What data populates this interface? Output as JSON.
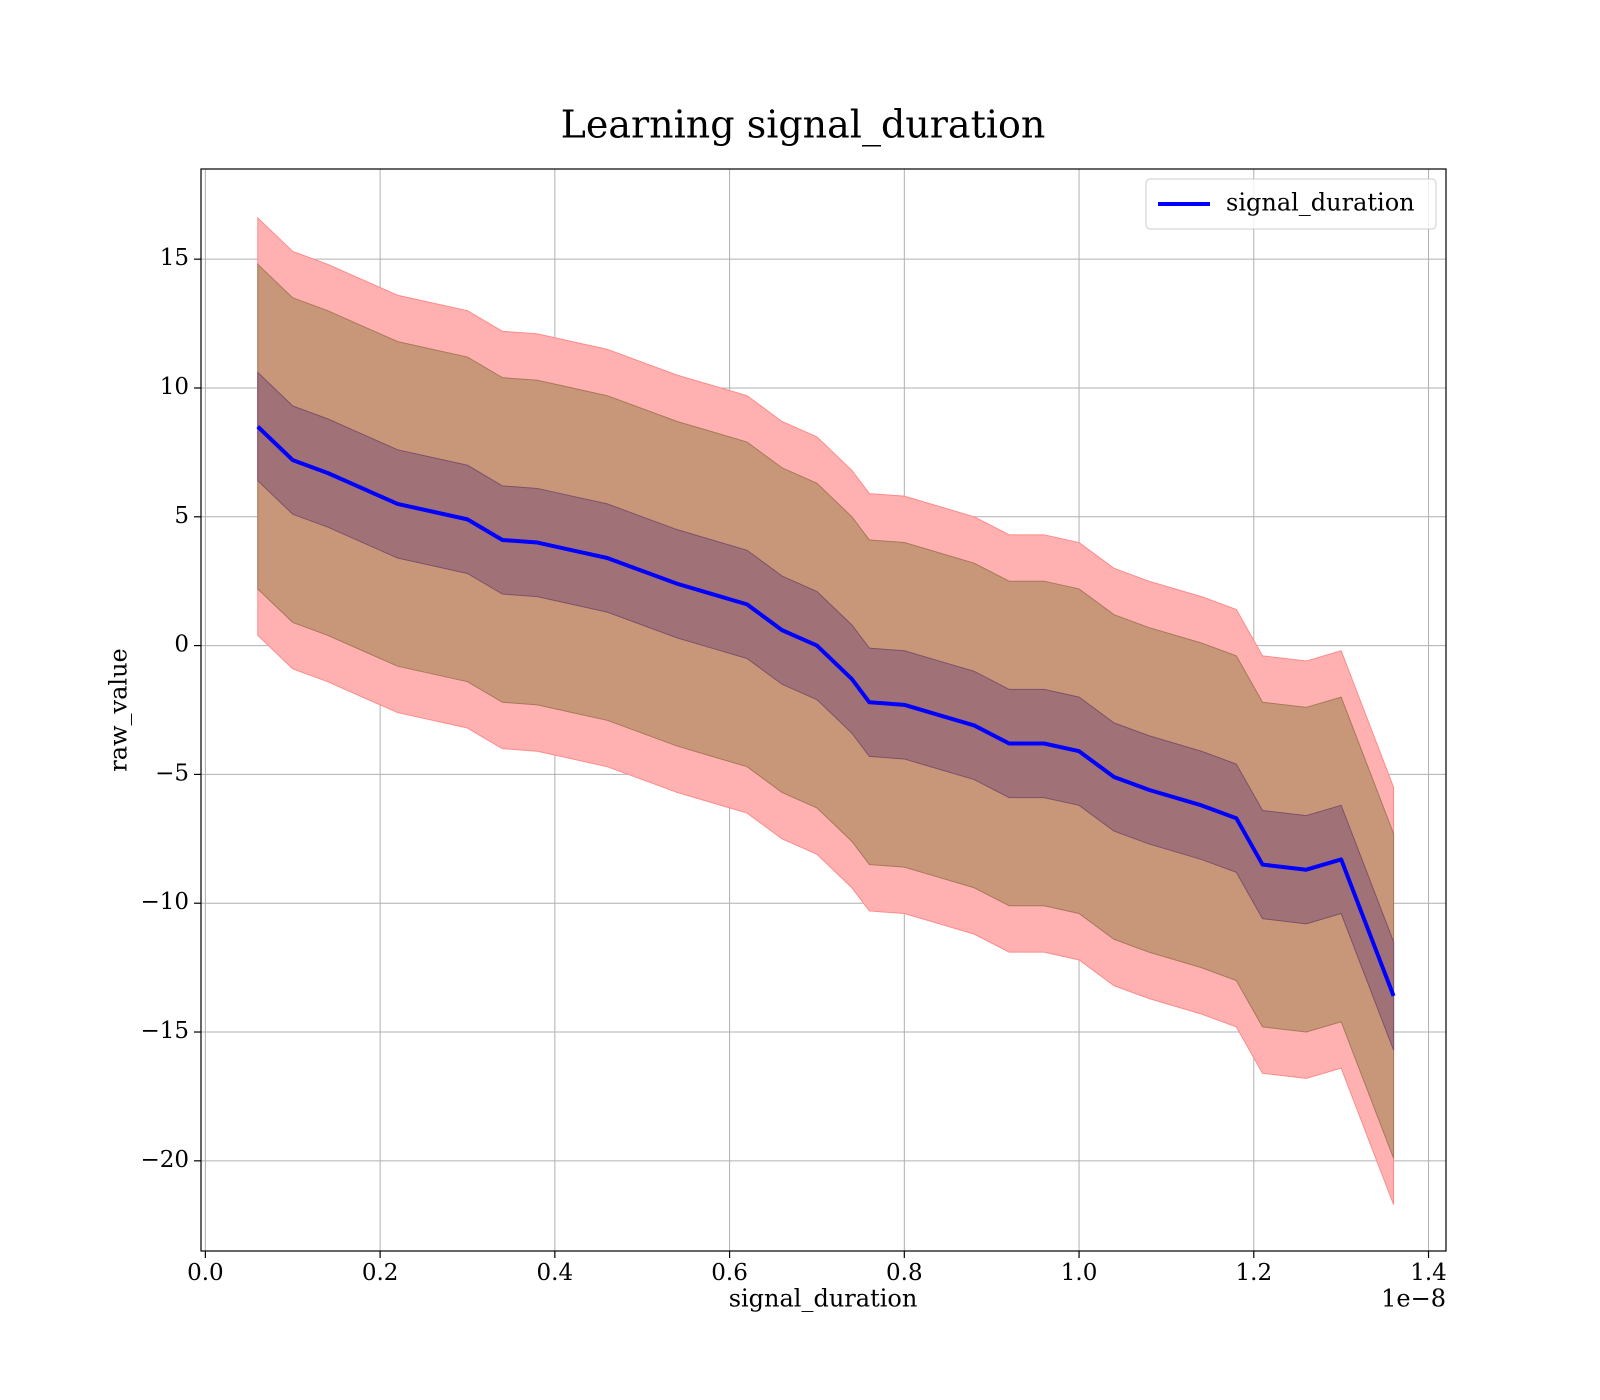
{
  "chart_data": {
    "type": "line",
    "title": "Learning signal_duration",
    "x_label": "signal_duration",
    "y_label": "raw_value",
    "x_offset_label": "1e−8",
    "x": [
      0.06,
      0.1,
      0.14,
      0.18,
      0.22,
      0.26,
      0.3,
      0.34,
      0.38,
      0.42,
      0.46,
      0.5,
      0.54,
      0.58,
      0.62,
      0.66,
      0.7,
      0.74,
      0.76,
      0.8,
      0.84,
      0.88,
      0.92,
      0.96,
      1.0,
      1.04,
      1.08,
      1.14,
      1.18,
      1.21,
      1.26,
      1.3,
      1.36
    ],
    "series": [
      {
        "name": "signal_duration",
        "color": "#0000ff",
        "values": [
          8.5,
          7.2,
          6.7,
          6.1,
          5.5,
          5.2,
          4.9,
          4.1,
          4.0,
          3.7,
          3.4,
          2.9,
          2.4,
          2.0,
          1.6,
          0.6,
          0.0,
          -1.3,
          -2.2,
          -2.3,
          -2.7,
          -3.1,
          -3.8,
          -3.8,
          -4.1,
          -5.1,
          -5.6,
          -6.2,
          -6.7,
          -8.5,
          -8.7,
          -8.3,
          -13.6
        ]
      }
    ],
    "bands": [
      {
        "color": "#ffb1b1",
        "edge": "#ff8a8a",
        "upper": [
          16.6,
          15.3,
          14.8,
          14.2,
          13.6,
          13.3,
          13.0,
          12.2,
          12.1,
          11.8,
          11.5,
          11.0,
          10.5,
          10.1,
          9.7,
          8.7,
          8.1,
          6.8,
          5.9,
          5.8,
          5.4,
          5.0,
          4.3,
          4.3,
          4.0,
          3.0,
          2.5,
          1.9,
          1.4,
          -0.4,
          -0.6,
          -0.2,
          -5.5
        ],
        "lower": [
          0.4,
          -0.9,
          -1.4,
          -2.0,
          -2.6,
          -2.9,
          -3.2,
          -4.0,
          -4.1,
          -4.4,
          -4.7,
          -5.2,
          -5.7,
          -6.1,
          -6.5,
          -7.5,
          -8.1,
          -9.4,
          -10.3,
          -10.4,
          -10.8,
          -11.2,
          -11.9,
          -11.9,
          -12.2,
          -13.2,
          -13.7,
          -14.3,
          -14.8,
          -16.6,
          -16.8,
          -16.4,
          -21.7
        ]
      },
      {
        "color": "#c8977a",
        "edge": "#a8785a",
        "upper": [
          14.8,
          13.5,
          13.0,
          12.4,
          11.8,
          11.5,
          11.2,
          10.4,
          10.3,
          10.0,
          9.7,
          9.2,
          8.7,
          8.3,
          7.9,
          6.9,
          6.3,
          5.0,
          4.1,
          4.0,
          3.6,
          3.2,
          2.5,
          2.5,
          2.2,
          1.2,
          0.7,
          0.1,
          -0.4,
          -2.2,
          -2.4,
          -2.0,
          -7.3
        ],
        "lower": [
          2.2,
          0.9,
          0.4,
          -0.2,
          -0.8,
          -1.1,
          -1.4,
          -2.2,
          -2.3,
          -2.6,
          -2.9,
          -3.4,
          -3.9,
          -4.3,
          -4.7,
          -5.7,
          -6.3,
          -7.6,
          -8.5,
          -8.6,
          -9.0,
          -9.4,
          -10.1,
          -10.1,
          -10.4,
          -11.4,
          -11.9,
          -12.5,
          -13.0,
          -14.8,
          -15.0,
          -14.6,
          -19.9
        ]
      },
      {
        "color": "#a07278",
        "edge": "#7e5068",
        "upper": [
          10.6,
          9.3,
          8.8,
          8.2,
          7.6,
          7.3,
          7.0,
          6.2,
          6.1,
          5.8,
          5.5,
          5.0,
          4.5,
          4.1,
          3.7,
          2.7,
          2.1,
          0.8,
          -0.1,
          -0.2,
          -0.6,
          -1.0,
          -1.7,
          -1.7,
          -2.0,
          -3.0,
          -3.5,
          -4.1,
          -4.6,
          -6.4,
          -6.6,
          -6.2,
          -11.5
        ],
        "lower": [
          6.4,
          5.1,
          4.6,
          4.0,
          3.4,
          3.1,
          2.8,
          2.0,
          1.9,
          1.6,
          1.3,
          0.8,
          0.3,
          -0.1,
          -0.5,
          -1.5,
          -2.1,
          -3.4,
          -4.3,
          -4.4,
          -4.8,
          -5.2,
          -5.9,
          -5.9,
          -6.2,
          -7.2,
          -7.7,
          -8.3,
          -8.8,
          -10.6,
          -10.8,
          -10.4,
          -15.7
        ]
      }
    ],
    "xlim": [
      -0.005,
      1.42
    ],
    "ylim": [
      -23.5,
      18.5
    ],
    "xticks": [
      {
        "value": 0,
        "label": "0.0"
      },
      0.2,
      0.4,
      0.6,
      0.8,
      {
        "value": 1,
        "label": "1.0"
      },
      1.2,
      1.4
    ],
    "yticks": [
      {
        "value": -20,
        "label": "−20"
      },
      {
        "value": -15,
        "label": "−15"
      },
      {
        "value": -10,
        "label": "−10"
      },
      {
        "value": -5,
        "label": "−5"
      },
      0,
      5,
      10,
      15
    ],
    "grid": true,
    "legend": "upper right"
  }
}
